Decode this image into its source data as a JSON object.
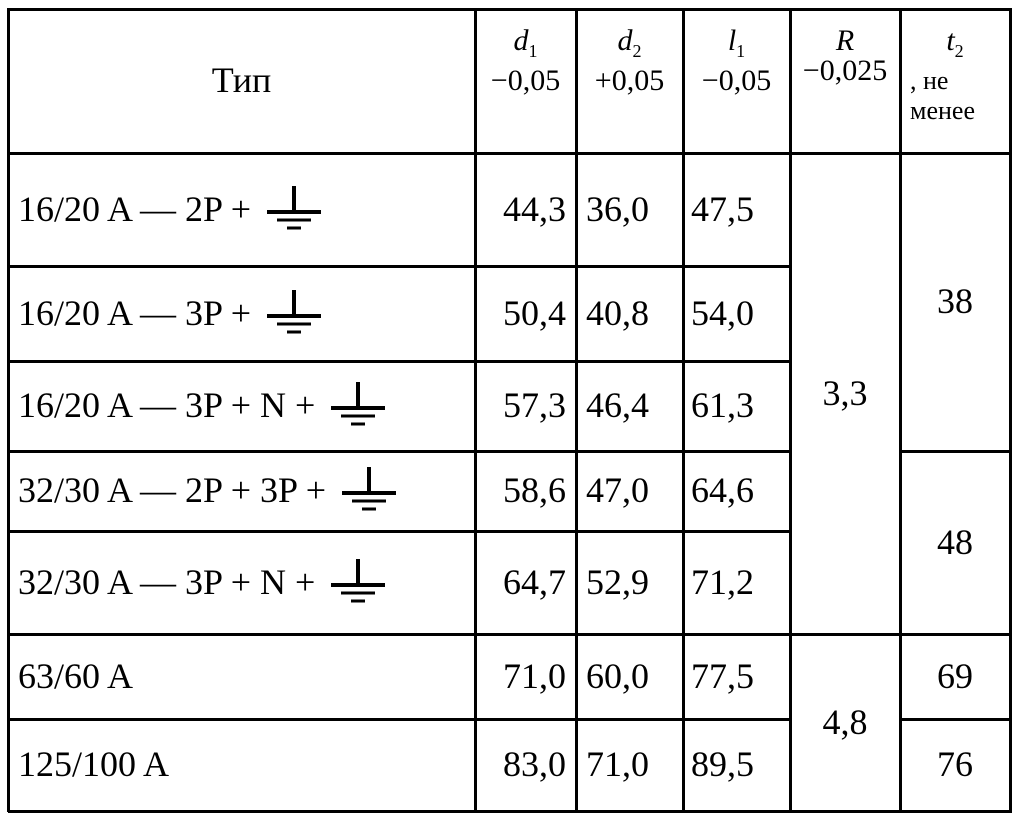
{
  "header": {
    "type": "Тип",
    "columns": [
      {
        "symbol": "d",
        "sub": "1",
        "tol": "−0,05"
      },
      {
        "symbol": "d",
        "sub": "2",
        "tol": "+0,05"
      },
      {
        "symbol": "l",
        "sub": "1",
        "tol": "−0,05"
      },
      {
        "symbol": "R",
        "sub": "",
        "tol": "−0,025"
      },
      {
        "symbol": "t",
        "sub": "2",
        "tol": ", не менее"
      }
    ]
  },
  "rows": [
    {
      "type": "16/20 A — 2P +",
      "d1": "44,3",
      "d2": "36,0",
      "l1": "47,5"
    },
    {
      "type": "16/20 A — 3P +",
      "d1": "50,4",
      "d2": "40,8",
      "l1": "54,0"
    },
    {
      "type": "16/20 A — 3P + N +",
      "d1": "57,3",
      "d2": "46,4",
      "l1": "61,3"
    },
    {
      "type": "32/30 A — 2P + 3P +",
      "d1": "58,6",
      "d2": "47,0",
      "l1": "64,6"
    },
    {
      "type": "32/30 A — 3P + N +",
      "d1": "64,7",
      "d2": "52,9",
      "l1": "71,2"
    },
    {
      "type": "63/60 A",
      "d1": "71,0",
      "d2": "60,0",
      "l1": "77,5"
    },
    {
      "type": "125/100 A",
      "d1": "83,0",
      "d2": "71,0",
      "l1": "89,5"
    }
  ],
  "r_values": [
    "3,3",
    "4,8"
  ],
  "t2_values": [
    "38",
    "48",
    "69",
    "76"
  ]
}
